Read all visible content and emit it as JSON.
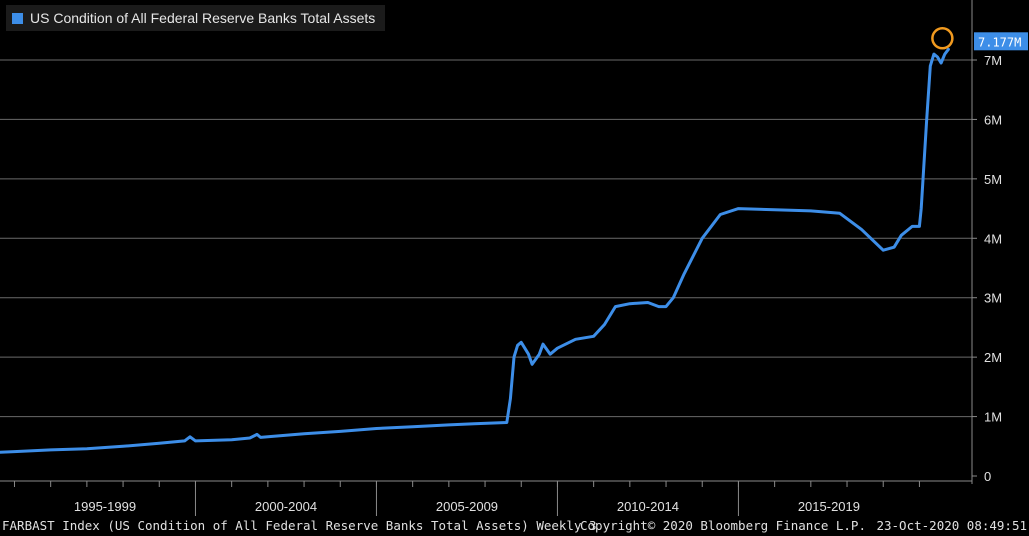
{
  "chart_data": {
    "type": "line",
    "title": "US Condition of All Federal Reserve Banks Total Assets",
    "y_unit": "M",
    "ylim": [
      0,
      7.7
    ],
    "x_range": [
      1994.6,
      2020.9
    ],
    "y_ticks": [
      {
        "value": 0,
        "label": "0"
      },
      {
        "value": 1,
        "label": "1M"
      },
      {
        "value": 2,
        "label": "2M"
      },
      {
        "value": 3,
        "label": "3M"
      },
      {
        "value": 4,
        "label": "4M"
      },
      {
        "value": 5,
        "label": "5M"
      },
      {
        "value": 6,
        "label": "6M"
      },
      {
        "value": 7,
        "label": "7M"
      }
    ],
    "x_categories": [
      {
        "label": "1995-1999",
        "start": 1995,
        "end": 2000
      },
      {
        "label": "2000-2004",
        "start": 2000,
        "end": 2005
      },
      {
        "label": "2005-2009",
        "start": 2005,
        "end": 2010
      },
      {
        "label": "2010-2014",
        "start": 2010,
        "end": 2015
      },
      {
        "label": "2015-2019",
        "start": 2015,
        "end": 2020
      }
    ],
    "last_value_label": "7.177M",
    "highlight": {
      "x": 2020.8,
      "y": 7.18
    },
    "grid": true,
    "legend_position": "top-left",
    "series": [
      {
        "name": "US Condition of All Federal Reserve Banks Total Assets",
        "color": "#3d8ee8",
        "points": [
          [
            1994.6,
            0.4
          ],
          [
            1995.0,
            0.41
          ],
          [
            1996.0,
            0.44
          ],
          [
            1997.0,
            0.46
          ],
          [
            1998.0,
            0.5
          ],
          [
            1999.0,
            0.55
          ],
          [
            1999.7,
            0.59
          ],
          [
            1999.85,
            0.66
          ],
          [
            2000.0,
            0.59
          ],
          [
            2001.0,
            0.61
          ],
          [
            2001.5,
            0.64
          ],
          [
            2001.7,
            0.7
          ],
          [
            2001.8,
            0.65
          ],
          [
            2002.0,
            0.66
          ],
          [
            2003.0,
            0.71
          ],
          [
            2004.0,
            0.75
          ],
          [
            2005.0,
            0.8
          ],
          [
            2006.0,
            0.83
          ],
          [
            2007.0,
            0.86
          ],
          [
            2007.7,
            0.88
          ],
          [
            2008.6,
            0.9
          ],
          [
            2008.7,
            1.3
          ],
          [
            2008.8,
            2.0
          ],
          [
            2008.9,
            2.2
          ],
          [
            2009.0,
            2.25
          ],
          [
            2009.2,
            2.05
          ],
          [
            2009.3,
            1.88
          ],
          [
            2009.5,
            2.05
          ],
          [
            2009.6,
            2.22
          ],
          [
            2009.8,
            2.05
          ],
          [
            2010.0,
            2.15
          ],
          [
            2010.5,
            2.3
          ],
          [
            2011.0,
            2.35
          ],
          [
            2011.3,
            2.55
          ],
          [
            2011.6,
            2.85
          ],
          [
            2012.0,
            2.9
          ],
          [
            2012.5,
            2.92
          ],
          [
            2012.8,
            2.85
          ],
          [
            2013.0,
            2.85
          ],
          [
            2013.2,
            3.0
          ],
          [
            2013.5,
            3.4
          ],
          [
            2014.0,
            4.0
          ],
          [
            2014.5,
            4.4
          ],
          [
            2015.0,
            4.5
          ],
          [
            2016.0,
            4.48
          ],
          [
            2017.0,
            4.46
          ],
          [
            2017.8,
            4.42
          ],
          [
            2018.4,
            4.15
          ],
          [
            2019.0,
            3.8
          ],
          [
            2019.3,
            3.85
          ],
          [
            2019.5,
            4.05
          ],
          [
            2019.8,
            4.2
          ],
          [
            2020.0,
            4.2
          ],
          [
            2020.05,
            4.5
          ],
          [
            2020.2,
            6.0
          ],
          [
            2020.3,
            6.9
          ],
          [
            2020.4,
            7.1
          ],
          [
            2020.5,
            7.05
          ],
          [
            2020.6,
            6.95
          ],
          [
            2020.7,
            7.1
          ],
          [
            2020.8,
            7.18
          ]
        ]
      }
    ]
  },
  "footer": {
    "left": "FARBAST Index (US Condition of All Federal Reserve Banks Total Assets)  Weekly 3",
    "center": "Copyright© 2020 Bloomberg Finance L.P.",
    "right": "23-Oct-2020 08:49:51"
  }
}
